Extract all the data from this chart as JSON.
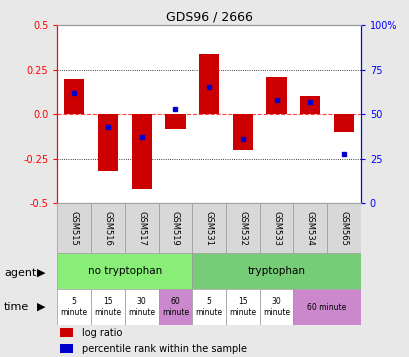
{
  "title": "GDS96 / 2666",
  "samples": [
    "GSM515",
    "GSM516",
    "GSM517",
    "GSM519",
    "GSM531",
    "GSM532",
    "GSM533",
    "GSM534",
    "GSM565"
  ],
  "log_ratio": [
    0.2,
    -0.32,
    -0.42,
    -0.08,
    0.34,
    -0.2,
    0.21,
    0.1,
    -0.1
  ],
  "percentile": [
    62,
    43,
    37,
    53,
    65,
    36,
    58,
    57,
    28
  ],
  "ylim_left": [
    -0.5,
    0.5
  ],
  "ylim_right": [
    0,
    100
  ],
  "yticks_left": [
    -0.5,
    -0.25,
    0.0,
    0.25,
    0.5
  ],
  "yticks_right": [
    0,
    25,
    50,
    75,
    100
  ],
  "bar_color": "#cc0000",
  "dot_color": "#0000cc",
  "zero_line_color": "#ff4444",
  "grid_color": "#000000",
  "bg_color": "#e8e8e8",
  "plot_bg": "#ffffff",
  "agent_no_tryp_color": "#88ee77",
  "agent_tryp_color": "#77cc77",
  "time_white_color": "#ffffff",
  "time_pink_color": "#cc88cc",
  "agent_no_tryp_label": "no tryptophan",
  "agent_tryp_label": "tryptophan",
  "agent_label": "agent",
  "time_label": "time",
  "legend_log": "log ratio",
  "legend_pct": "percentile rank within the sample",
  "no_tryp_samples": 4,
  "tryp_samples": 5
}
